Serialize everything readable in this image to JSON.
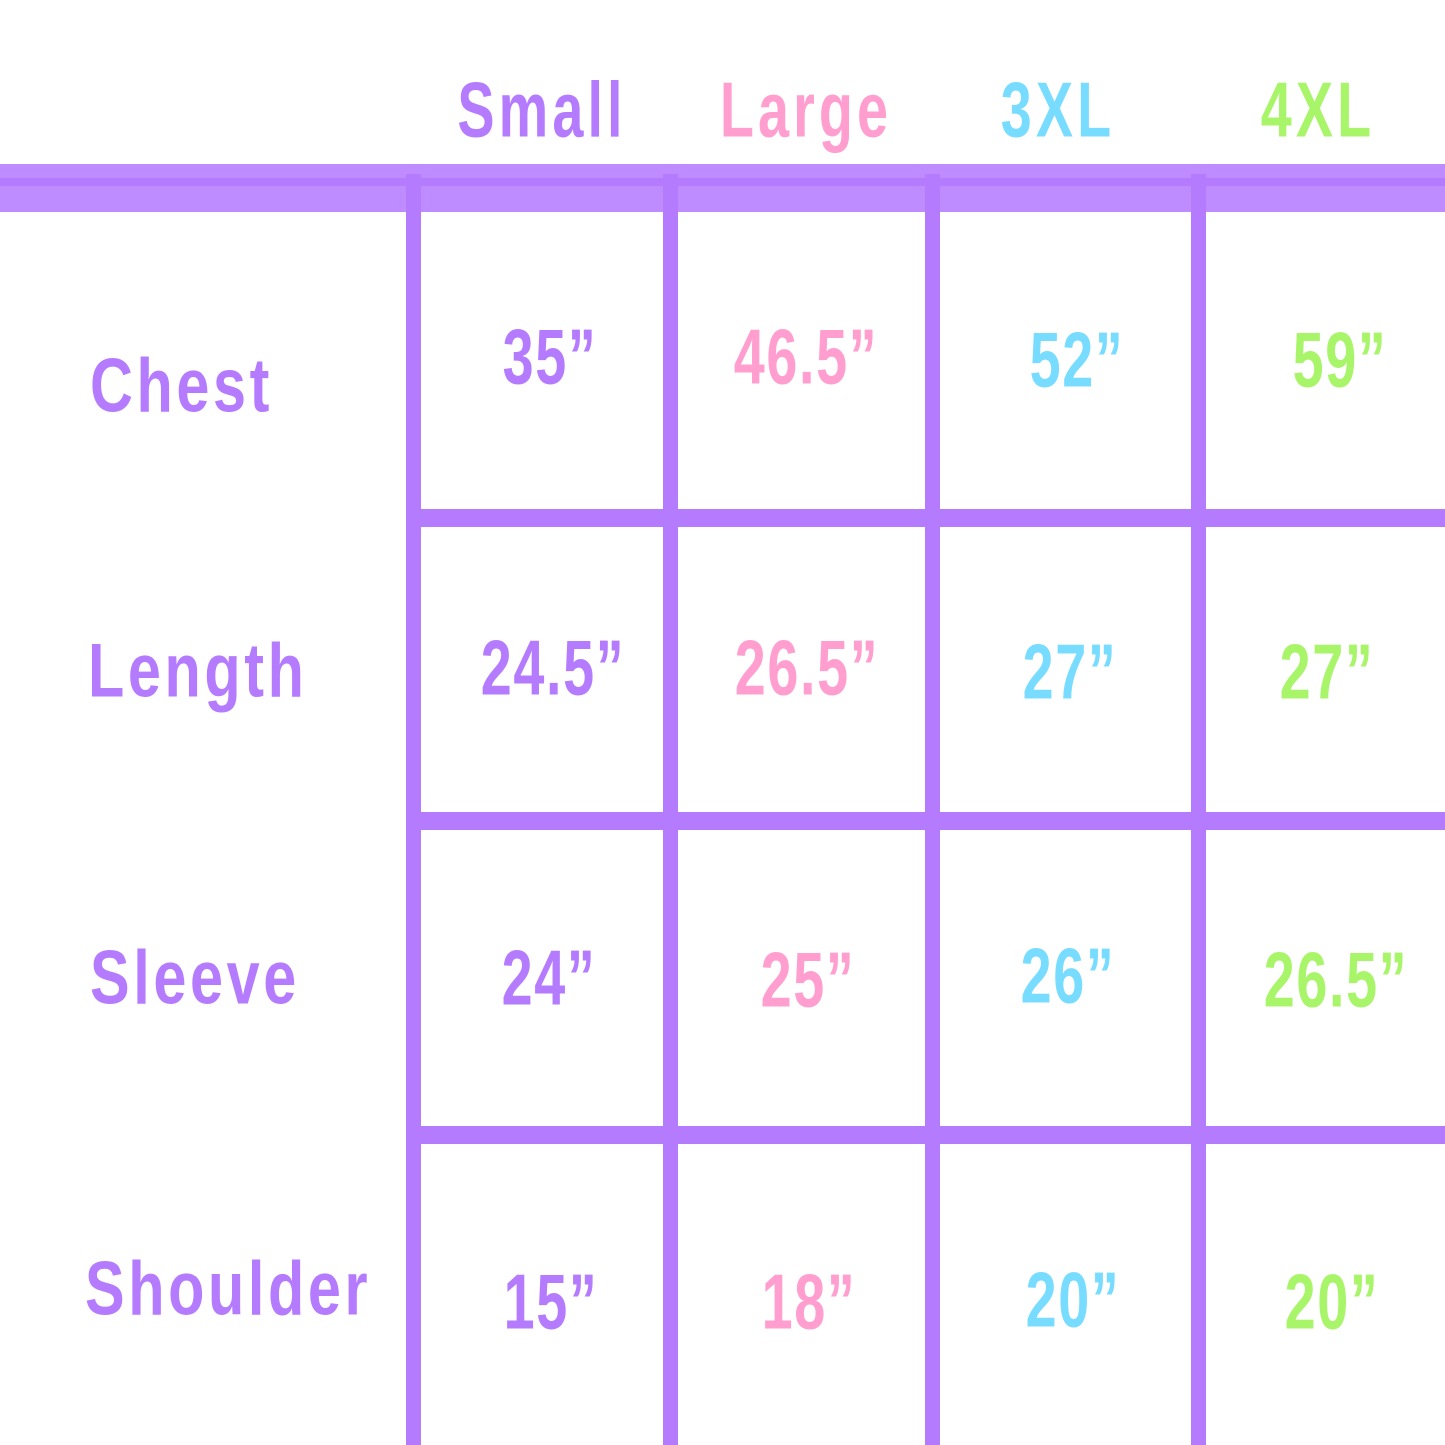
{
  "colors": {
    "grid": "#b57bff",
    "header_band": "#be8cff",
    "small": "#b57bff",
    "large": "#ff9ecf",
    "xxxl": "#77dcff",
    "xxxxl": "#a8f56a"
  },
  "columns": [
    "Small",
    "Large",
    "3XL",
    "4XL"
  ],
  "rows": [
    {
      "label": "Chest",
      "values": [
        "35”",
        "46.5”",
        "52”",
        "59”"
      ]
    },
    {
      "label": "Length",
      "values": [
        "24.5”",
        "26.5”",
        "27”",
        "27”"
      ]
    },
    {
      "label": "Sleeve",
      "values": [
        "24”",
        "25”",
        "26”",
        "26.5”"
      ]
    },
    {
      "label": "Shoulder",
      "values": [
        "15”",
        "18”",
        "20”",
        "20”"
      ]
    }
  ]
}
